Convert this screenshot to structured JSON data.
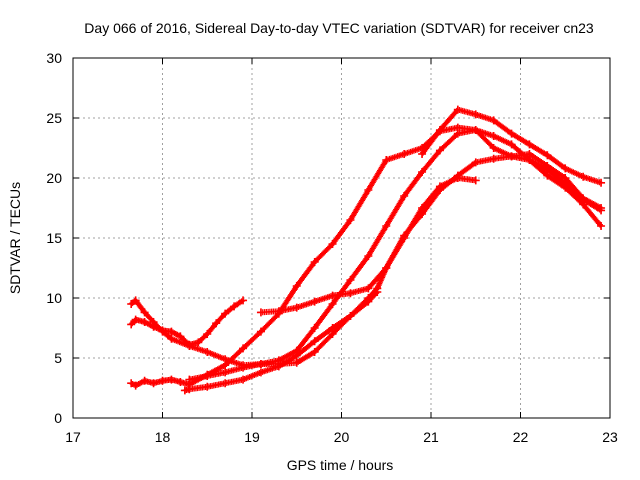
{
  "chart_data": {
    "type": "scatter",
    "title": "Day 066 of 2016, Sidereal Day-to-day VTEC variation (SDTVAR) for receiver cn23",
    "xlabel": "GPS time / hours",
    "ylabel": "SDTVAR / TECUs",
    "xlim": [
      17,
      23
    ],
    "ylim": [
      0,
      30
    ],
    "xticks": [
      17,
      18,
      19,
      20,
      21,
      22,
      23
    ],
    "yticks": [
      0,
      5,
      10,
      15,
      20,
      25,
      30
    ],
    "grid": true,
    "marker": "plus",
    "color": "#ff0000",
    "series": [
      {
        "name": "track-1",
        "x": [
          17.65,
          17.7,
          17.8,
          17.9,
          18.0,
          18.1,
          18.3,
          18.5,
          18.7,
          18.9,
          19.1,
          19.3,
          19.5,
          19.7,
          19.9,
          20.1,
          20.3,
          20.5,
          20.7,
          20.9,
          21.1,
          21.3,
          21.5,
          21.7,
          21.9,
          22.1,
          22.3,
          22.5,
          22.7,
          22.9
        ],
        "y": [
          9.5,
          9.8,
          8.8,
          8.0,
          7.2,
          6.6,
          6.0,
          5.5,
          4.9,
          4.4,
          4.5,
          4.8,
          5.6,
          7.5,
          9.5,
          11.5,
          13.5,
          16.0,
          18.5,
          20.5,
          22.3,
          23.7,
          24.0,
          22.5,
          21.8,
          22.0,
          21.0,
          20.0,
          18.3,
          17.5
        ]
      },
      {
        "name": "track-2",
        "x": [
          17.65,
          17.7,
          17.8,
          17.9,
          18.0,
          18.1,
          18.2,
          18.3,
          18.4,
          18.5,
          18.6,
          18.7,
          18.8,
          18.9
        ],
        "y": [
          7.8,
          8.2,
          8.0,
          7.6,
          7.3,
          7.2,
          6.8,
          6.1,
          6.3,
          7.0,
          7.9,
          8.7,
          9.3,
          9.8
        ]
      },
      {
        "name": "track-3",
        "x": [
          17.65,
          17.7,
          17.8,
          17.9,
          18.0,
          18.1,
          18.2,
          18.3,
          18.5,
          18.7,
          18.9,
          19.1,
          19.3,
          19.5,
          19.7,
          19.9,
          20.1,
          20.3,
          20.5,
          20.7,
          20.9,
          21.1,
          21.3,
          21.5,
          21.7,
          21.9,
          22.1,
          22.3,
          22.5,
          22.7,
          22.9
        ],
        "y": [
          2.9,
          2.7,
          3.1,
          2.9,
          3.1,
          3.2,
          3.0,
          2.8,
          3.6,
          4.4,
          5.8,
          7.2,
          8.7,
          11.0,
          13.0,
          14.5,
          16.5,
          19.0,
          21.5,
          22.0,
          22.5,
          23.9,
          24.2,
          24.0,
          23.5,
          22.8,
          21.5,
          20.7,
          19.5,
          18.2,
          17.3
        ]
      },
      {
        "name": "track-4",
        "x": [
          18.25,
          18.3,
          18.5,
          18.7,
          18.9,
          19.1,
          19.3,
          19.5,
          19.7,
          19.9,
          20.1,
          20.3,
          20.4
        ],
        "y": [
          2.3,
          2.4,
          2.6,
          2.9,
          3.2,
          3.8,
          4.3,
          5.2,
          6.4,
          7.5,
          8.5,
          9.7,
          10.5
        ]
      },
      {
        "name": "track-5",
        "x": [
          18.3,
          18.5,
          18.7,
          18.9,
          19.1,
          19.3,
          19.5,
          19.7,
          19.9,
          20.1,
          20.3,
          20.4,
          20.5,
          20.7,
          20.9,
          21.1,
          21.3,
          21.5,
          21.7,
          21.9,
          22.1,
          22.3,
          22.5,
          22.7,
          22.9
        ],
        "y": [
          3.2,
          3.5,
          3.8,
          4.2,
          4.5,
          4.5,
          4.6,
          5.5,
          7.0,
          8.5,
          10.0,
          10.8,
          12.5,
          15.2,
          17.0,
          19.0,
          20.2,
          21.3,
          21.6,
          21.8,
          21.5,
          20.2,
          19.2,
          17.8,
          16.0
        ]
      },
      {
        "name": "track-6",
        "x": [
          19.1,
          19.3,
          19.5,
          19.7,
          19.9,
          20.1,
          20.3,
          20.5,
          20.7,
          20.9,
          21.1,
          21.3,
          21.5
        ],
        "y": [
          8.8,
          8.9,
          9.2,
          9.7,
          10.2,
          10.4,
          10.8,
          12.5,
          15.0,
          17.5,
          19.3,
          20.0,
          19.8
        ]
      },
      {
        "name": "track-7",
        "x": [
          20.9,
          21.1,
          21.3,
          21.5,
          21.7,
          21.9,
          22.1,
          22.3,
          22.5,
          22.7,
          22.9
        ],
        "y": [
          22.0,
          24.0,
          25.7,
          25.3,
          24.8,
          23.7,
          22.8,
          21.9,
          20.8,
          20.1,
          19.6
        ]
      }
    ]
  }
}
